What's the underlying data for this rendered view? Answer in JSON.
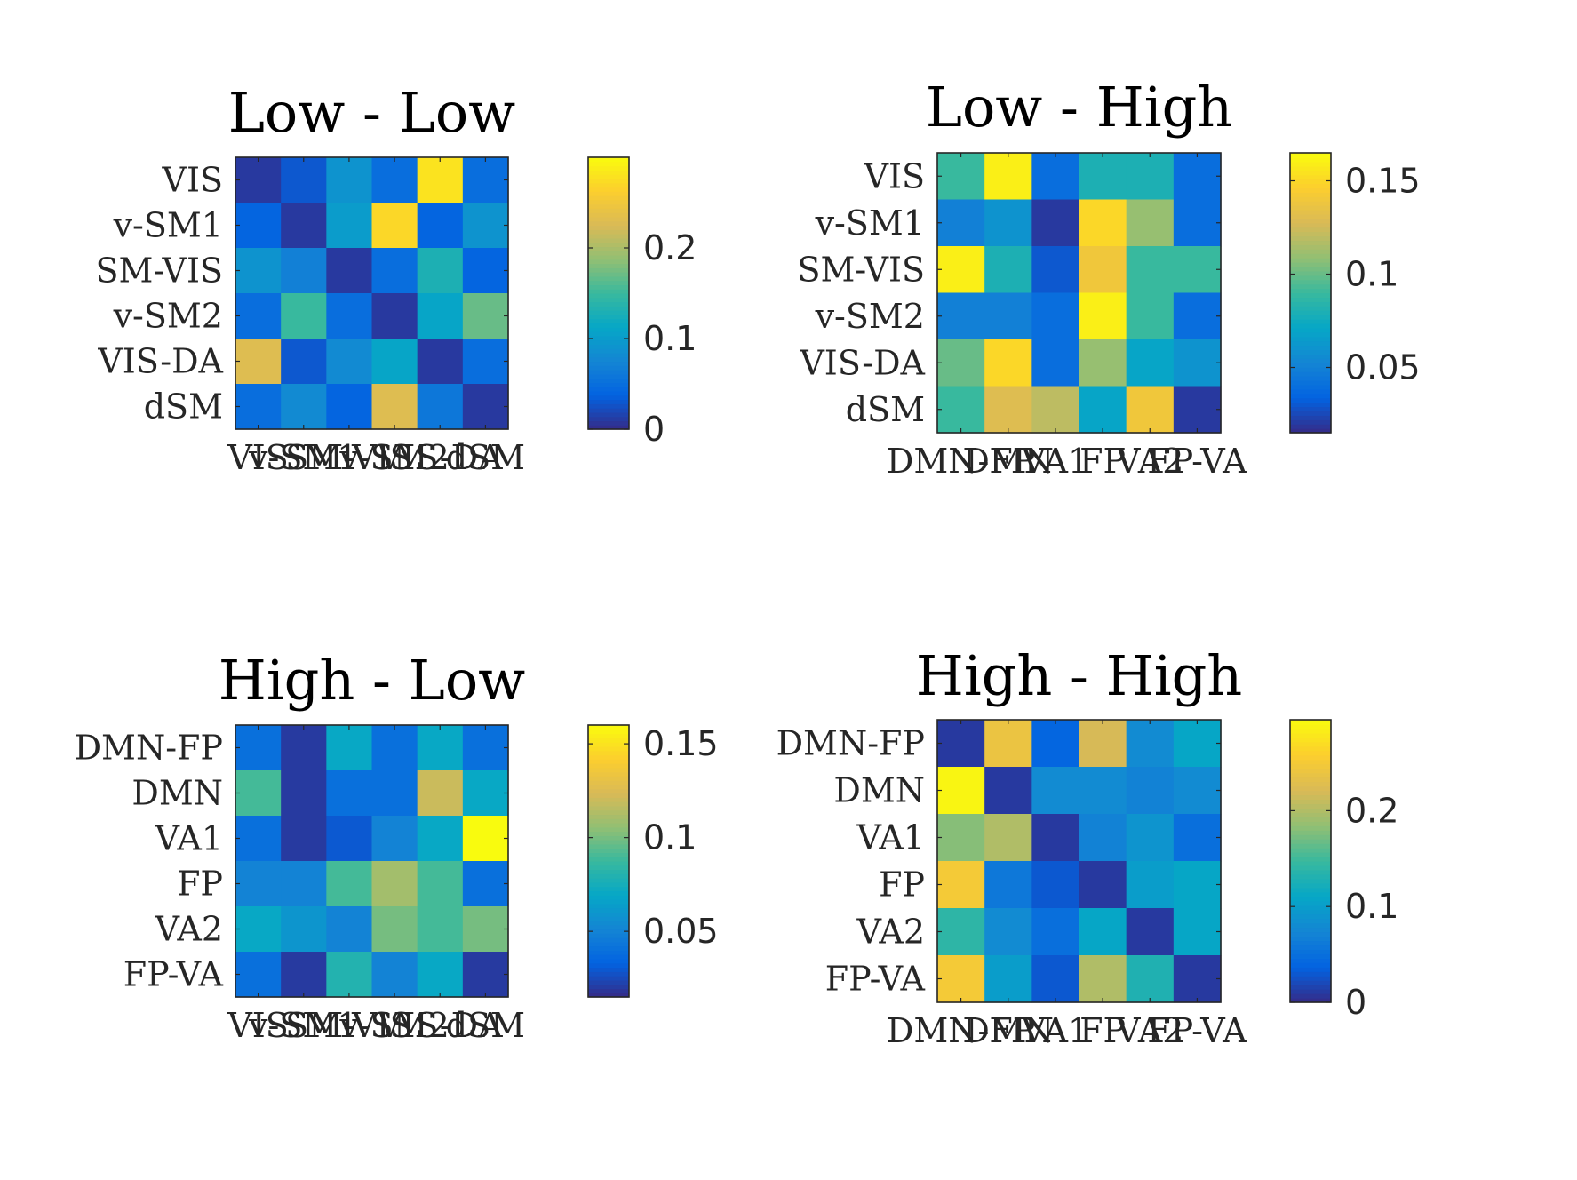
{
  "chart_data": [
    {
      "type": "heatmap",
      "title": "Low - Low",
      "row_labels": [
        "VIS",
        "v-SM1",
        "SM-VIS",
        "v-SM2",
        "VIS-DA",
        "dSM"
      ],
      "col_labels": [
        "VIS",
        "v-SM1",
        "SM-VIS",
        "v-SM2",
        "VIS-DA",
        "dSM"
      ],
      "values": [
        [
          0.01,
          0.03,
          0.09,
          0.05,
          0.28,
          0.05
        ],
        [
          0.04,
          0.01,
          0.1,
          0.27,
          0.04,
          0.09
        ],
        [
          0.09,
          0.07,
          0.01,
          0.05,
          0.13,
          0.04
        ],
        [
          0.05,
          0.15,
          0.05,
          0.01,
          0.11,
          0.17
        ],
        [
          0.23,
          0.03,
          0.08,
          0.11,
          0.01,
          0.05
        ],
        [
          0.05,
          0.08,
          0.04,
          0.23,
          0.06,
          0.01
        ]
      ],
      "clim": [
        0,
        0.3
      ],
      "colorbar_ticks": [
        "0",
        "0.1",
        "0.2"
      ],
      "colorbar_tick_values": [
        0,
        0.1,
        0.2
      ]
    },
    {
      "type": "heatmap",
      "title": "Low - High",
      "row_labels": [
        "VIS",
        "v-SM1",
        "SM-VIS",
        "v-SM2",
        "VIS-DA",
        "dSM"
      ],
      "col_labels": [
        "DMN-FP",
        "DMN",
        "VA1",
        "FP",
        "VA2",
        "FP-VA"
      ],
      "values": [
        [
          0.09,
          0.16,
          0.04,
          0.08,
          0.08,
          0.04
        ],
        [
          0.05,
          0.06,
          0.02,
          0.15,
          0.11,
          0.04
        ],
        [
          0.16,
          0.08,
          0.03,
          0.14,
          0.09,
          0.09
        ],
        [
          0.05,
          0.05,
          0.04,
          0.16,
          0.09,
          0.04
        ],
        [
          0.1,
          0.15,
          0.04,
          0.11,
          0.07,
          0.06
        ],
        [
          0.09,
          0.13,
          0.12,
          0.07,
          0.14,
          0.02
        ]
      ],
      "clim": [
        0.015,
        0.165
      ],
      "colorbar_ticks": [
        "0.05",
        "0.1",
        "0.15"
      ],
      "colorbar_tick_values": [
        0.05,
        0.1,
        0.15
      ]
    },
    {
      "type": "heatmap",
      "title": "High - Low",
      "row_labels": [
        "DMN-FP",
        "DMN",
        "VA1",
        "FP",
        "VA2",
        "FP-VA"
      ],
      "col_labels": [
        "VIS",
        "v-SM1",
        "SM-VIS",
        "v-SM2",
        "VIS-DA",
        "dSM"
      ],
      "values": [
        [
          0.04,
          0.02,
          0.07,
          0.04,
          0.07,
          0.04
        ],
        [
          0.09,
          0.02,
          0.04,
          0.04,
          0.12,
          0.07
        ],
        [
          0.04,
          0.02,
          0.03,
          0.05,
          0.07,
          0.16
        ],
        [
          0.05,
          0.05,
          0.09,
          0.11,
          0.09,
          0.04
        ],
        [
          0.07,
          0.06,
          0.05,
          0.1,
          0.09,
          0.1
        ],
        [
          0.04,
          0.02,
          0.08,
          0.05,
          0.07,
          0.02
        ]
      ],
      "clim": [
        0.015,
        0.16
      ],
      "colorbar_ticks": [
        "0.05",
        "0.1",
        "0.15"
      ],
      "colorbar_tick_values": [
        0.05,
        0.1,
        0.15
      ]
    },
    {
      "type": "heatmap",
      "title": "High - High",
      "row_labels": [
        "DMN-FP",
        "DMN",
        "VA1",
        "FP",
        "VA2",
        "FP-VA"
      ],
      "col_labels": [
        "DMN-FP",
        "DMN",
        "VA1",
        "FP",
        "VA2",
        "FP-VA"
      ],
      "values": [
        [
          0.01,
          0.24,
          0.04,
          0.22,
          0.08,
          0.11
        ],
        [
          0.29,
          0.01,
          0.08,
          0.08,
          0.07,
          0.08
        ],
        [
          0.18,
          0.2,
          0.01,
          0.07,
          0.09,
          0.05
        ],
        [
          0.25,
          0.06,
          0.03,
          0.01,
          0.1,
          0.11
        ],
        [
          0.14,
          0.08,
          0.05,
          0.11,
          0.01,
          0.11
        ],
        [
          0.25,
          0.1,
          0.03,
          0.2,
          0.13,
          0.01
        ]
      ],
      "clim": [
        0,
        0.295
      ],
      "colorbar_ticks": [
        "0",
        "0.1",
        "0.2"
      ],
      "colorbar_tick_values": [
        0,
        0.1,
        0.2
      ]
    }
  ]
}
